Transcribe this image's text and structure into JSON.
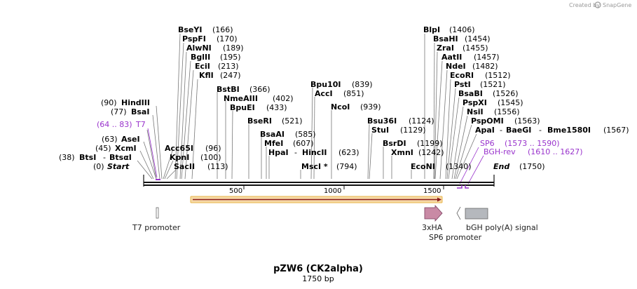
{
  "credit": "Created by",
  "brand": "SnapGene",
  "plasmid": {
    "name": "pZW6 (CK2alpha)",
    "length": "1750 bp"
  },
  "ruler": [
    "500",
    "1000",
    "1500"
  ],
  "ends": {
    "start": "Start",
    "end": "End",
    "start_pos": "(0)",
    "end_pos": "(1750)"
  },
  "sites_left": [
    {
      "name": "HindIII",
      "pos": "(90)"
    },
    {
      "name": "BsaI",
      "pos": "(77)"
    },
    {
      "name": "AseI",
      "pos": "(63)"
    },
    {
      "name": "XcmI",
      "pos": "(45)"
    },
    {
      "name": "BtsI",
      "sep": "-",
      "name2": "BtsαI",
      "pos": "(38)"
    }
  ],
  "sites_top": [
    {
      "name": "BseYI",
      "pos": "(166)"
    },
    {
      "name": "PspFI",
      "pos": "(170)"
    },
    {
      "name": "AlwNI",
      "pos": "(189)"
    },
    {
      "name": "BglII",
      "pos": "(195)"
    },
    {
      "name": "EciI",
      "pos": "(213)"
    },
    {
      "name": "KflI",
      "pos": "(247)"
    },
    {
      "name": "BstBI",
      "pos": "(366)"
    },
    {
      "name": "NmeAIII",
      "pos": "(402)"
    },
    {
      "name": "BpuEI",
      "pos": "(433)"
    },
    {
      "name": "Acc65I",
      "pos": "(96)"
    },
    {
      "name": "KpnI",
      "pos": "(100)"
    },
    {
      "name": "SacII",
      "pos": "(113)"
    },
    {
      "name": "BseRI",
      "pos": "(521)"
    },
    {
      "name": "BsaAI",
      "pos": "(585)"
    },
    {
      "name": "MfeI",
      "pos": "(607)"
    },
    {
      "name": "HpaI",
      "sep": "-",
      "name2": "HincII",
      "pos": "(623)"
    },
    {
      "name": "Bpu10I",
      "pos": "(839)"
    },
    {
      "name": "AccI",
      "pos": "(851)"
    },
    {
      "name": "NcoI",
      "pos": "(939)"
    },
    {
      "name": "MscI *",
      "pos": "(794)"
    },
    {
      "name": "Bsu36I",
      "pos": "(1124)"
    },
    {
      "name": "StuI",
      "pos": "(1129)"
    },
    {
      "name": "BsrDI",
      "pos": "(1199)"
    },
    {
      "name": "XmnI",
      "pos": "(1242)"
    },
    {
      "name": "EcoNI",
      "pos": "(1340)"
    }
  ],
  "sites_right": [
    {
      "name": "BlpI",
      "pos": "(1406)"
    },
    {
      "name": "BsaHI",
      "pos": "(1454)"
    },
    {
      "name": "ZraI",
      "pos": "(1455)"
    },
    {
      "name": "AatII",
      "pos": "(1457)"
    },
    {
      "name": "NdeI",
      "pos": "(1482)"
    },
    {
      "name": "EcoRI",
      "pos": "(1512)"
    },
    {
      "name": "PstI",
      "pos": "(1521)"
    },
    {
      "name": "BsaBI",
      "pos": "(1526)"
    },
    {
      "name": "PspXI",
      "pos": "(1545)"
    },
    {
      "name": "NsiI",
      "pos": "(1556)"
    },
    {
      "name": "PspOMI",
      "pos": "(1563)"
    },
    {
      "name": "ApaI",
      "sep": "-",
      "name2": "BaeGI",
      "sep2": "-",
      "name3": "Bme1580I",
      "pos": "(1567)"
    }
  ],
  "primers": [
    {
      "name": "T7",
      "pos": "(64 .. 83)"
    },
    {
      "name": "SP6",
      "pos": "(1573 .. 1590)"
    },
    {
      "name": "BGH-rev",
      "pos": "(1610 .. 1627)"
    }
  ],
  "features": {
    "t7_promoter": "T7 promoter",
    "tag": "3xHA",
    "sp6_promoter": "SP6 promoter",
    "polya": "bGH poly(A) signal"
  },
  "colors": {
    "orf_fill": "#f6d9a6",
    "orf_border": "#e8b64a",
    "orf_arrow": "#8b1a1a",
    "tag_fill": "#c98aa5",
    "polya_fill": "#b5b8bd",
    "primer": "#9933cc"
  }
}
